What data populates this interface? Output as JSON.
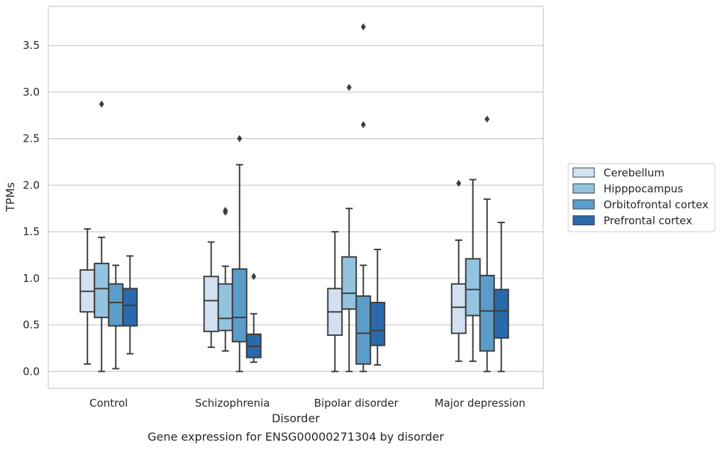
{
  "chart_data": {
    "type": "box",
    "caption": "Gene expression for ENSG00000271304 by disorder",
    "xlabel": "Disorder",
    "ylabel": "TPMs",
    "ylim": [
      -0.18,
      3.92
    ],
    "yticks": [
      "0.0",
      "0.5",
      "1.0",
      "1.5",
      "2.0",
      "2.5",
      "3.0",
      "3.5"
    ],
    "grid": true,
    "legend_position": "right",
    "categories": [
      "Control",
      "Schizophrenia",
      "Bipolar disorder",
      "Major depression"
    ],
    "series": [
      {
        "name": "Cerebellum",
        "color": "#d1e1f1",
        "boxes": [
          {
            "whisker_low": 0.08,
            "q1": 0.64,
            "median": 0.86,
            "q3": 1.09,
            "whisker_high": 1.53,
            "outliers": []
          },
          {
            "whisker_low": 0.26,
            "q1": 0.43,
            "median": 0.76,
            "q3": 1.02,
            "whisker_high": 1.39,
            "outliers": []
          },
          {
            "whisker_low": 0.0,
            "q1": 0.39,
            "median": 0.64,
            "q3": 0.89,
            "whisker_high": 1.5,
            "outliers": []
          },
          {
            "whisker_low": 0.11,
            "q1": 0.41,
            "median": 0.69,
            "q3": 0.94,
            "whisker_high": 1.41,
            "outliers": [
              2.02
            ]
          }
        ]
      },
      {
        "name": "Hipppocampus",
        "color": "#93c3df",
        "boxes": [
          {
            "whisker_low": 0.0,
            "q1": 0.58,
            "median": 0.89,
            "q3": 1.16,
            "whisker_high": 1.44,
            "outliers": [
              2.87
            ]
          },
          {
            "whisker_low": 0.22,
            "q1": 0.44,
            "median": 0.57,
            "q3": 0.94,
            "whisker_high": 1.13,
            "outliers": [
              1.73,
              1.71
            ]
          },
          {
            "whisker_low": 0.0,
            "q1": 0.67,
            "median": 0.84,
            "q3": 1.23,
            "whisker_high": 1.75,
            "outliers": [
              3.05
            ]
          },
          {
            "whisker_low": 0.11,
            "q1": 0.6,
            "median": 0.88,
            "q3": 1.21,
            "whisker_high": 2.06,
            "outliers": []
          }
        ]
      },
      {
        "name": "Orbitofrontal cortex",
        "color": "#5b9dc9",
        "boxes": [
          {
            "whisker_low": 0.03,
            "q1": 0.49,
            "median": 0.74,
            "q3": 0.94,
            "whisker_high": 1.14,
            "outliers": []
          },
          {
            "whisker_low": 0.0,
            "q1": 0.32,
            "median": 0.58,
            "q3": 1.1,
            "whisker_high": 2.22,
            "outliers": [
              2.5
            ]
          },
          {
            "whisker_low": 0.0,
            "q1": 0.08,
            "median": 0.41,
            "q3": 0.81,
            "whisker_high": 1.14,
            "outliers": [
              3.7,
              2.65
            ]
          },
          {
            "whisker_low": 0.0,
            "q1": 0.22,
            "median": 0.65,
            "q3": 1.03,
            "whisker_high": 1.85,
            "outliers": [
              2.71
            ]
          }
        ]
      },
      {
        "name": "Prefrontal cortex",
        "color": "#2a6aab",
        "boxes": [
          {
            "whisker_low": 0.19,
            "q1": 0.49,
            "median": 0.71,
            "q3": 0.89,
            "whisker_high": 1.24,
            "outliers": []
          },
          {
            "whisker_low": 0.1,
            "q1": 0.15,
            "median": 0.27,
            "q3": 0.4,
            "whisker_high": 0.62,
            "outliers": [
              1.02
            ]
          },
          {
            "whisker_low": 0.07,
            "q1": 0.28,
            "median": 0.44,
            "q3": 0.74,
            "whisker_high": 1.31,
            "outliers": []
          },
          {
            "whisker_low": 0.0,
            "q1": 0.36,
            "median": 0.65,
            "q3": 0.88,
            "whisker_high": 1.6,
            "outliers": []
          }
        ]
      }
    ]
  }
}
